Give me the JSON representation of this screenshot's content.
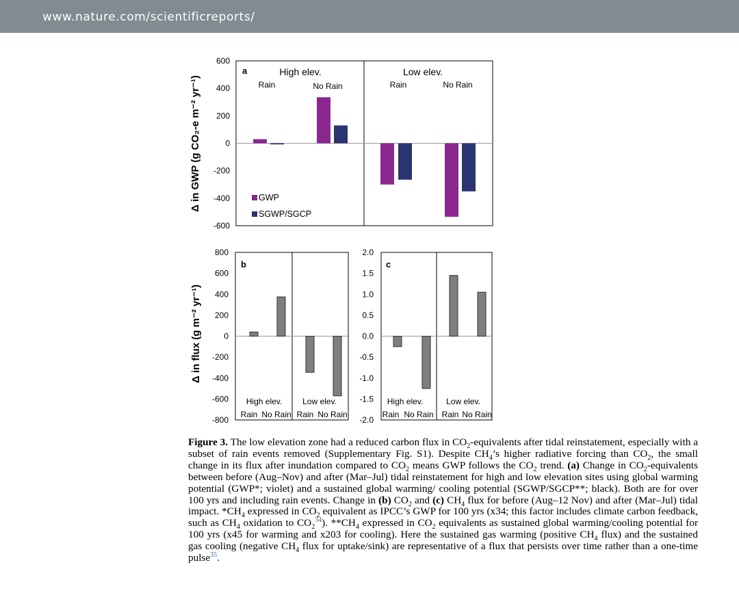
{
  "header": {
    "url": "www.nature.com/scientificreports/"
  },
  "colors": {
    "gwp": "#8a2890",
    "sgwp": "#2a3470",
    "gray_bar": "#7f7f7f",
    "header_bg": "#808c91"
  },
  "chart_data": [
    {
      "panel": "a",
      "type": "bar",
      "ylabel": "Δ in GWP (g CO₂-e m⁻² yr⁻¹)",
      "ylim": [
        -600,
        600
      ],
      "yticks": [
        "600",
        "400",
        "200",
        "0",
        "-200",
        "-400",
        "-600"
      ],
      "groups": [
        "High elev.",
        "Low elev."
      ],
      "categories": [
        "Rain",
        "No Rain",
        "Rain",
        "No Rain"
      ],
      "series": [
        {
          "name": "GWP",
          "values": [
            30,
            335,
            -300,
            -535
          ]
        },
        {
          "name": "SGWP/SGCP",
          "values": [
            -8,
            130,
            -265,
            -350
          ]
        }
      ],
      "legend_position": "bottom-left"
    },
    {
      "panel": "b",
      "type": "bar",
      "ylabel": "Δ in flux (g m⁻² yr⁻¹)",
      "ylim": [
        -800,
        800
      ],
      "yticks": [
        "800",
        "600",
        "400",
        "200",
        "0",
        "-200",
        "-400",
        "-600",
        "-800"
      ],
      "groups": [
        "High elev.",
        "Low elev."
      ],
      "categories": [
        "Rain",
        "No Rain",
        "Rain",
        "No Rain"
      ],
      "values": [
        40,
        375,
        -345,
        -570
      ]
    },
    {
      "panel": "c",
      "type": "bar",
      "ylim": [
        -2.0,
        2.0
      ],
      "yticks": [
        "2.0",
        "1.5",
        "1.0",
        "0.5",
        "0.0",
        "-0.5",
        "-1.0",
        "-1.5",
        "-2.0"
      ],
      "groups": [
        "High elev.",
        "Low elev."
      ],
      "categories": [
        "Rain",
        "No Rain",
        "Rain",
        "No Rain"
      ],
      "values": [
        -0.25,
        -1.25,
        1.45,
        1.05
      ]
    }
  ],
  "caption": {
    "label": "Figure 3.",
    "t1": " The low elevation zone had a reduced carbon flux in CO",
    "t2": "-equivalents after tidal reinstatement, especially with a subset of rain events removed (Supplementary Fig. S1). Despite CH",
    "t3": "’s higher radiative forcing than CO",
    "t4": ", the small change in its flux after inundation compared to CO",
    "t5": " means GWP follows the CO",
    "t6": " trend. ",
    "a_label": "(a)",
    "t7": " Change in CO",
    "t8": "-equivalents between before (Aug–Nov) and after (Mar–Jul) tidal reinstatement for high and low elevation sites using global warming potential (GWP*; violet) and a sustained global warming/ cooling potential (SGWP/SGCP**; black). Both are for over 100 yrs and including rain events. Change in ",
    "b_label": "(b)",
    "t9": " CO",
    "t10": " and ",
    "c_label": "(c)",
    "t11": " CH",
    "t12": " flux for before (Aug–12 Nov) and after (Mar–Jul) tidal impact. *CH",
    "t13": " expressed in CO",
    "t14": " equivalent as IPCC’s GWP for 100 yrs (x34; this factor includes climate carbon feedback, such as CH",
    "t15": " oxidation to CO",
    "ref1": "34",
    "t16": "). **CH",
    "t17": " expressed in CO",
    "t18": " equivalents as sustained global warming/cooling potential for 100 yrs (x45 for warming and x203 for cooling). Here the sustained gas warming (positive CH",
    "t19": " flux) and the sustained gas cooling (negative CH",
    "t20": " flux for uptake/sink) are representative of a flux that persists over time rather than a one-time pulse",
    "ref2": "35",
    "t21": ".",
    "sub2": "2",
    "sub4": "4"
  }
}
